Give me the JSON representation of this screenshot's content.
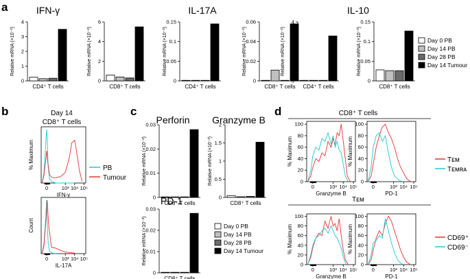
{
  "panels": {
    "a": "a",
    "b": "b",
    "c": "c",
    "d": "d"
  },
  "colors": {
    "day0": "#ffffff",
    "day14": "#c0c0c0",
    "day28": "#6a6a6a",
    "tumour": "#000000",
    "pb": "#1ec7d8",
    "tumour_line": "#e8332f",
    "tem": "#e8332f",
    "temra": "#1ec7d8",
    "cd69pos": "#e8332f",
    "cd69neg": "#1ec7d8"
  },
  "bar_legend": {
    "items": [
      "Day 0 PB",
      "Day 14 PB",
      "Day 28 PB",
      "Day 14 Tumour"
    ]
  },
  "panel_a": {
    "titles": {
      "ifng": "IFN-γ",
      "il17a": "IL-17A",
      "il10": "IL-10"
    }
  },
  "panel_b": {
    "header_line1": "Day 14",
    "header_line2": "CD8⁺ T cells",
    "ylabel_top": "% Maximum",
    "ylabel_bottom": "Count",
    "xlabel_top": "IFN-γ",
    "xlabel_bottom": "IL-17A",
    "x_ticks": [
      "0",
      "10³",
      "10⁴",
      "10⁵"
    ],
    "legend": [
      "PB",
      "Tumour"
    ]
  },
  "panel_c": {
    "titles": {
      "perforin": "Perforin",
      "granzyme": "Granzyme B",
      "pd1": "PD-1"
    }
  },
  "panel_d": {
    "group1": "CD8⁺ T cells",
    "group2": "Tᴇᴍ",
    "ylabel": "% Maximum",
    "y_ticks": [
      "0",
      "20",
      "40",
      "60",
      "80",
      "100"
    ],
    "x_ticks": [
      "0",
      "10³",
      "10⁴",
      "10⁵"
    ],
    "xlabels": [
      "Granzyme B",
      "PD-1"
    ],
    "legend_top": [
      "Tᴇᴍ",
      "Tᴇᴍʀᴀ"
    ],
    "legend_bottom": [
      "CD69⁺",
      "CD69⁻"
    ]
  },
  "chart_data": [
    {
      "type": "bar",
      "id": "a1",
      "title": "",
      "xlabel": "CD4⁺ T cells",
      "ylabel": "Relative mRNA (×10⁻²)",
      "ylim": [
        0,
        4
      ],
      "yticks": [
        0,
        1,
        2,
        3,
        4
      ],
      "categories": [
        "Day 0 PB",
        "Day 14 PB",
        "Day 28 PB",
        "Day 14 Tumour"
      ],
      "values": [
        0.25,
        0.15,
        0.18,
        3.5
      ]
    },
    {
      "type": "bar",
      "id": "a2",
      "title": "",
      "xlabel": "CD8⁺ T cells",
      "ylabel": "Relative mRNA (×10⁻²)",
      "ylim": [
        0,
        6
      ],
      "yticks": [
        0,
        2,
        4,
        6
      ],
      "categories": [
        "Day 0 PB",
        "Day 14 PB",
        "Day 28 PB",
        "Day 14 Tumour"
      ],
      "values": [
        0.6,
        0.4,
        0.3,
        5.5
      ]
    },
    {
      "type": "bar",
      "id": "a3",
      "title": "",
      "xlabel": "CD4⁺ T cells",
      "ylabel": "Relative mRNA (×10⁻²)",
      "ylim": [
        0,
        0.15
      ],
      "yticks": [
        0,
        0.05,
        0.1,
        0.15
      ],
      "categories": [
        "Day 0 PB",
        "Day 14 PB",
        "Day 28 PB",
        "Day 14 Tumour"
      ],
      "values": [
        0.0,
        0.0,
        0.0,
        0.145
      ]
    },
    {
      "type": "bar",
      "id": "a4",
      "title": "",
      "xlabel": "CD8⁺ T cells",
      "ylabel": "Relative mRNA (×10⁻²)",
      "ylim": [
        0,
        0.06
      ],
      "yticks": [
        0,
        0.02,
        0.04,
        0.06
      ],
      "categories": [
        "Day 0 PB",
        "Day 14 PB",
        "Day 28 PB",
        "Day 14 Tumour"
      ],
      "values": [
        0.0,
        0.011,
        0.0,
        0.058
      ]
    },
    {
      "type": "bar",
      "id": "a5",
      "title": "",
      "xlabel": "CD4⁺ T cells",
      "ylabel": "Relative mRNA (×10⁻²)",
      "ylim": [
        0,
        4
      ],
      "yticks": [
        0,
        1,
        2,
        3,
        4
      ],
      "categories": [
        "Day 0 PB",
        "Day 14 PB",
        "Day 28 PB",
        "Day 14 Tumour"
      ],
      "values": [
        0.0,
        0.0,
        0.0,
        3.05
      ]
    },
    {
      "type": "bar",
      "id": "a6",
      "title": "",
      "xlabel": "CD8⁺ T cells",
      "ylabel": "Relative mRNA (×10⁻²)",
      "ylim": [
        0,
        0.15
      ],
      "yticks": [
        0,
        0.05,
        0.1,
        0.15
      ],
      "categories": [
        "Day 0 PB",
        "Day 14 PB",
        "Day 28 PB",
        "Day 14 Tumour"
      ],
      "values": [
        0.028,
        0.026,
        0.026,
        0.127
      ]
    },
    {
      "type": "bar",
      "id": "c1",
      "title": "",
      "xlabel": "CD8⁺ T cells",
      "ylabel": "Relative mRNA (×10⁻²)",
      "ylim": [
        0,
        0.03
      ],
      "yticks": [
        0,
        0.01,
        0.02,
        0.03
      ],
      "categories": [
        "Day 0 PB",
        "Day 14 PB",
        "Day 28 PB",
        "Day 14 Tumour"
      ],
      "values": [
        0.0,
        0.0,
        0.0,
        0.028
      ]
    },
    {
      "type": "bar",
      "id": "c2",
      "title": "",
      "xlabel": "CD8⁺ T cells",
      "ylabel": "Relative mRNA (×10⁻²)",
      "ylim": [
        0,
        2
      ],
      "yticks": [
        0,
        0.5,
        1,
        1.5,
        2
      ],
      "categories": [
        "Day 0 PB",
        "Day 14 PB",
        "Day 28 PB",
        "Day 14 Tumour"
      ],
      "values": [
        0.05,
        0.02,
        0.03,
        1.52
      ]
    },
    {
      "type": "bar",
      "id": "c3",
      "title": "",
      "xlabel": "CD8⁺ T cells",
      "ylabel": "Relative mRNA (×10⁻²)",
      "ylim": [
        0,
        0.03
      ],
      "yticks": [
        0,
        0.01,
        0.02,
        0.03
      ],
      "categories": [
        "Day 0 PB",
        "Day 14 PB",
        "Day 28 PB",
        "Day 14 Tumour"
      ],
      "values": [
        0.0,
        0.0,
        0.0,
        0.028
      ]
    },
    {
      "type": "line",
      "id": "b1",
      "title": "",
      "xlabel": "IFN-γ",
      "ylabel": "% Maximum",
      "series": [
        {
          "name": "PB",
          "x": [
            -0.5,
            -0.3,
            -0.15,
            -0.05,
            0.0,
            0.05,
            0.15,
            0.3,
            0.6,
            1.0,
            2.0,
            3.0
          ],
          "values": [
            0,
            20,
            60,
            90,
            100,
            85,
            30,
            8,
            2,
            0,
            0,
            0
          ]
        },
        {
          "name": "Tumour",
          "x": [
            -0.5,
            -0.3,
            -0.1,
            0.0,
            0.1,
            0.3,
            0.6,
            1.0,
            1.5,
            2.0,
            2.4,
            2.7,
            3.0,
            3.2,
            3.5,
            3.8
          ],
          "values": [
            0,
            15,
            45,
            60,
            40,
            15,
            10,
            10,
            12,
            20,
            45,
            75,
            80,
            60,
            25,
            3
          ]
        }
      ]
    },
    {
      "type": "line",
      "id": "b2",
      "title": "",
      "xlabel": "IL-17A",
      "ylabel": "Count",
      "series": [
        {
          "name": "PB",
          "x": [
            -0.5,
            -0.3,
            -0.1,
            -0.02,
            0.0,
            0.05,
            0.15,
            0.3,
            0.6,
            1.0
          ],
          "values": [
            0,
            20,
            70,
            100,
            95,
            60,
            20,
            5,
            1,
            0
          ]
        },
        {
          "name": "Tumour",
          "x": [
            -0.5,
            -0.3,
            -0.1,
            0.0,
            0.05,
            0.2,
            0.5,
            1.0,
            1.5,
            2.0,
            2.5,
            3.0
          ],
          "values": [
            0,
            15,
            60,
            90,
            100,
            55,
            12,
            10,
            6,
            3,
            2,
            1
          ]
        }
      ]
    },
    {
      "type": "line",
      "id": "d1",
      "title": "",
      "xlabel": "Granzyme B",
      "ylabel": "% Maximum",
      "ylim": [
        0,
        100
      ],
      "series": [
        {
          "name": "Tᴇᴍ",
          "x": [
            -0.5,
            -0.2,
            0.0,
            0.3,
            0.6,
            0.9,
            1.2,
            1.5,
            1.8,
            2.0,
            2.2,
            2.4,
            2.6,
            2.8,
            3.0,
            3.2,
            3.4,
            3.7
          ],
          "values": [
            0,
            10,
            25,
            40,
            35,
            50,
            45,
            70,
            60,
            75,
            65,
            85,
            80,
            100,
            70,
            40,
            10,
            0
          ]
        },
        {
          "name": "Tᴇᴍʀᴀ",
          "x": [
            -0.5,
            -0.2,
            0.0,
            0.3,
            0.6,
            0.9,
            1.2,
            1.5,
            1.8,
            2.0,
            2.2,
            2.4,
            2.6,
            2.8,
            3.0,
            3.2,
            3.5
          ],
          "values": [
            0,
            20,
            45,
            60,
            55,
            75,
            70,
            85,
            65,
            80,
            60,
            70,
            55,
            50,
            30,
            10,
            0
          ]
        }
      ]
    },
    {
      "type": "line",
      "id": "d2",
      "title": "",
      "xlabel": "PD-1",
      "ylabel": "% Maximum",
      "ylim": [
        0,
        100
      ],
      "series": [
        {
          "name": "Tᴇᴍ",
          "x": [
            -0.5,
            -0.2,
            0.0,
            0.3,
            0.6,
            0.9,
            1.2,
            1.5,
            1.8,
            2.1,
            2.4,
            2.7,
            3.0,
            3.3,
            3.7
          ],
          "values": [
            0,
            10,
            30,
            60,
            80,
            95,
            100,
            85,
            75,
            60,
            40,
            25,
            15,
            5,
            0
          ]
        },
        {
          "name": "Tᴇᴍʀᴀ",
          "x": [
            -0.5,
            -0.2,
            0.0,
            0.3,
            0.6,
            0.9,
            1.2,
            1.5,
            1.8,
            2.1,
            2.4,
            2.7,
            3.0
          ],
          "values": [
            0,
            25,
            60,
            80,
            85,
            70,
            80,
            50,
            25,
            10,
            5,
            1,
            0
          ]
        }
      ]
    },
    {
      "type": "line",
      "id": "d3",
      "title": "",
      "xlabel": "Granzyme B",
      "ylabel": "% Maximum",
      "ylim": [
        0,
        100
      ],
      "series": [
        {
          "name": "CD69⁺",
          "x": [
            -0.5,
            -0.2,
            0.0,
            0.3,
            0.6,
            0.9,
            1.2,
            1.5,
            1.8,
            2.0,
            2.2,
            2.4,
            2.6,
            2.8,
            3.0,
            3.2,
            3.5
          ],
          "values": [
            0,
            15,
            35,
            55,
            65,
            60,
            90,
            75,
            100,
            80,
            85,
            70,
            95,
            60,
            30,
            10,
            0
          ]
        },
        {
          "name": "CD69⁻",
          "x": [
            -0.5,
            -0.2,
            0.0,
            0.3,
            0.6,
            0.9,
            1.2,
            1.5,
            1.8,
            2.0,
            2.2,
            2.4,
            2.6,
            2.8,
            3.0,
            3.3
          ],
          "values": [
            0,
            20,
            40,
            55,
            60,
            70,
            75,
            65,
            80,
            70,
            60,
            55,
            45,
            35,
            15,
            0
          ]
        }
      ]
    },
    {
      "type": "line",
      "id": "d4",
      "title": "",
      "xlabel": "PD-1",
      "ylabel": "% Maximum",
      "ylim": [
        0,
        100
      ],
      "series": [
        {
          "name": "CD69⁺",
          "x": [
            -0.5,
            -0.2,
            0.0,
            0.3,
            0.6,
            0.9,
            1.2,
            1.5,
            1.8,
            2.1,
            2.4,
            2.7,
            3.0,
            3.3,
            3.7
          ],
          "values": [
            0,
            10,
            30,
            55,
            70,
            60,
            85,
            100,
            90,
            70,
            50,
            30,
            15,
            5,
            0
          ]
        },
        {
          "name": "CD69⁻",
          "x": [
            -0.5,
            -0.2,
            0.0,
            0.3,
            0.6,
            0.9,
            1.2,
            1.5,
            1.8,
            2.1,
            2.4,
            2.7,
            3.0
          ],
          "values": [
            0,
            20,
            45,
            50,
            60,
            55,
            95,
            70,
            45,
            25,
            10,
            3,
            0
          ]
        }
      ]
    }
  ]
}
